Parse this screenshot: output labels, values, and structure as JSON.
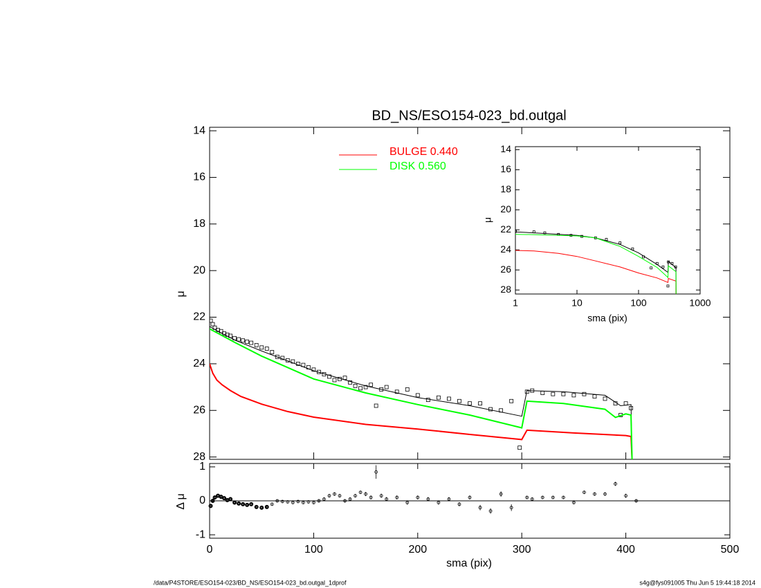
{
  "chart_data": [
    {
      "type": "line",
      "title": "BD_NS/ESO154-023_bd.outgal",
      "ylabel": "μ",
      "xlim": [
        0,
        500
      ],
      "ylim": [
        28.1,
        13.85
      ],
      "xticks": [
        0,
        100,
        200,
        300,
        400,
        500
      ],
      "yticks": [
        14,
        16,
        18,
        20,
        22,
        24,
        26,
        28
      ],
      "legend": "top",
      "series": [
        {
          "color": "#000000",
          "marker": "square",
          "x": [
            1,
            3,
            5,
            8,
            11,
            14,
            17,
            20,
            24,
            28,
            32,
            36,
            40,
            45,
            50,
            55,
            60,
            65,
            70,
            75,
            80,
            85,
            90,
            95,
            100,
            105,
            110,
            115,
            120,
            125,
            130,
            135,
            140,
            145,
            150,
            155,
            160,
            165,
            170,
            180,
            190,
            200,
            210,
            220,
            230,
            240,
            250,
            260,
            270,
            280,
            290,
            298,
            305,
            310,
            320,
            330,
            340,
            350,
            360,
            370,
            380,
            390,
            395,
            400,
            405
          ],
          "values": [
            22.15,
            22.3,
            22.45,
            22.55,
            22.6,
            22.7,
            22.75,
            22.8,
            22.9,
            22.95,
            23.0,
            23.05,
            23.1,
            23.2,
            23.3,
            23.35,
            23.5,
            23.7,
            23.75,
            23.85,
            23.9,
            24.0,
            24.05,
            24.15,
            24.25,
            24.35,
            24.45,
            24.55,
            24.7,
            24.65,
            24.6,
            24.8,
            24.95,
            25.05,
            25.0,
            24.9,
            25.8,
            25.1,
            25.0,
            25.2,
            25.1,
            25.35,
            25.55,
            25.45,
            25.5,
            25.6,
            25.7,
            25.7,
            25.95,
            26.0,
            25.6,
            27.6,
            25.2,
            25.15,
            25.25,
            25.3,
            25.3,
            25.35,
            25.3,
            25.4,
            25.5,
            25.7,
            26.2,
            25.7,
            25.9
          ]
        },
        {
          "color": "#000000",
          "x": [
            0,
            10,
            25,
            50,
            100,
            150,
            200,
            250,
            300,
            305,
            340,
            380,
            395,
            405,
            406
          ],
          "values": [
            22.4,
            22.65,
            23.0,
            23.45,
            24.3,
            24.95,
            25.45,
            25.8,
            26.25,
            25.15,
            25.2,
            25.35,
            25.8,
            25.75,
            28.1
          ]
        },
        {
          "name": "BULGE  0.440",
          "color": "#ff0000",
          "x": [
            0,
            3,
            7,
            12,
            20,
            30,
            50,
            75,
            100,
            150,
            200,
            250,
            300,
            305,
            350,
            400,
            405,
            406
          ],
          "values": [
            24.0,
            24.4,
            24.7,
            24.9,
            25.15,
            25.4,
            25.73,
            26.05,
            26.29,
            26.6,
            26.8,
            27.03,
            27.25,
            26.85,
            26.97,
            27.08,
            27.12,
            28.1
          ]
        },
        {
          "name": "DISK  0.560",
          "color": "#00ff00",
          "x": [
            0,
            25,
            50,
            100,
            150,
            200,
            250,
            300,
            305,
            340,
            380,
            390,
            400,
            405,
            406
          ],
          "values": [
            22.5,
            23.1,
            23.67,
            24.65,
            25.25,
            25.75,
            26.2,
            26.75,
            25.6,
            25.7,
            25.95,
            26.3,
            26.15,
            26.2,
            28.1
          ]
        }
      ]
    },
    {
      "type": "scatter",
      "xlabel": "sma (pix)",
      "ylabel": "Δ μ",
      "xlim": [
        0,
        500
      ],
      "ylim": [
        -1.1,
        1.1
      ],
      "xticks": [
        0,
        100,
        200,
        300,
        400,
        500
      ],
      "yticks": [
        -1,
        0,
        1
      ],
      "baseline": 0,
      "color": "#000000",
      "x": [
        1,
        3,
        5,
        8,
        11,
        14,
        17,
        20,
        24,
        28,
        32,
        36,
        40,
        45,
        50,
        55,
        60,
        65,
        70,
        75,
        80,
        85,
        90,
        95,
        100,
        105,
        110,
        115,
        120,
        125,
        130,
        135,
        140,
        145,
        150,
        155,
        160,
        165,
        170,
        180,
        190,
        200,
        210,
        220,
        230,
        240,
        250,
        260,
        270,
        280,
        290,
        305,
        310,
        320,
        330,
        340,
        350,
        360,
        370,
        380,
        390,
        400,
        410
      ],
      "values": [
        -0.15,
        0.0,
        0.1,
        0.15,
        0.12,
        0.08,
        0.02,
        0.05,
        -0.05,
        -0.08,
        -0.1,
        -0.12,
        -0.1,
        -0.18,
        -0.2,
        -0.18,
        -0.1,
        0.0,
        -0.02,
        -0.03,
        -0.05,
        -0.02,
        -0.05,
        -0.03,
        -0.05,
        0.0,
        0.05,
        0.15,
        0.2,
        0.15,
        0.0,
        0.05,
        0.15,
        0.25,
        0.2,
        0.1,
        0.85,
        0.15,
        0.05,
        0.1,
        -0.05,
        0.1,
        0.05,
        -0.05,
        0.05,
        -0.1,
        0.1,
        -0.2,
        -0.3,
        0.2,
        -0.2,
        0.1,
        0.05,
        0.1,
        0.1,
        0.1,
        -0.05,
        0.25,
        0.2,
        0.2,
        0.5,
        0.15,
        0.0
      ],
      "errors": [
        0.03,
        0.03,
        0.03,
        0.03,
        0.03,
        0.03,
        0.03,
        0.03,
        0.03,
        0.03,
        0.03,
        0.03,
        0.03,
        0.03,
        0.03,
        0.03,
        0.03,
        0.04,
        0.04,
        0.04,
        0.04,
        0.04,
        0.04,
        0.04,
        0.05,
        0.05,
        0.05,
        0.05,
        0.05,
        0.05,
        0.05,
        0.05,
        0.05,
        0.05,
        0.06,
        0.06,
        0.2,
        0.06,
        0.06,
        0.06,
        0.06,
        0.06,
        0.06,
        0.06,
        0.06,
        0.06,
        0.06,
        0.08,
        0.08,
        0.08,
        0.1,
        0.05,
        0.05,
        0.05,
        0.05,
        0.05,
        0.05,
        0.05,
        0.05,
        0.05,
        0.06,
        0.06,
        0.05
      ]
    },
    {
      "type": "line",
      "xlabel": "sma (pix)",
      "ylabel": "μ",
      "xlog": true,
      "xlim": [
        1,
        1000
      ],
      "ylim": [
        28.4,
        13.7
      ],
      "xticks": [
        1,
        10,
        100,
        1000
      ],
      "yticks": [
        14,
        16,
        18,
        20,
        22,
        24,
        26,
        28
      ],
      "series": [
        {
          "color": "#000000",
          "marker": "square",
          "x": [
            1,
            2,
            3,
            5,
            8,
            12,
            20,
            30,
            50,
            80,
            120,
            160,
            200,
            250,
            300,
            305,
            350,
            400
          ],
          "values": [
            22.15,
            22.2,
            22.3,
            22.45,
            22.55,
            22.65,
            22.8,
            22.95,
            23.3,
            23.9,
            24.7,
            25.8,
            25.35,
            25.7,
            27.6,
            25.2,
            25.35,
            25.7
          ]
        },
        {
          "color": "#000000",
          "x": [
            1,
            2,
            5,
            10,
            20,
            50,
            100,
            200,
            300,
            305,
            400,
            405,
            406
          ],
          "values": [
            22.2,
            22.3,
            22.45,
            22.55,
            22.8,
            23.45,
            24.3,
            25.45,
            26.25,
            25.15,
            25.75,
            25.75,
            28.4
          ]
        },
        {
          "color": "#ff0000",
          "x": [
            1,
            2,
            5,
            10,
            20,
            50,
            100,
            200,
            300,
            305,
            400,
            405,
            406
          ],
          "values": [
            24.05,
            24.1,
            24.35,
            24.65,
            25.1,
            25.7,
            26.3,
            26.8,
            27.25,
            26.85,
            27.1,
            27.12,
            28.4
          ]
        },
        {
          "color": "#00ff00",
          "x": [
            1,
            2,
            5,
            10,
            20,
            50,
            100,
            200,
            300,
            305,
            400,
            405,
            406
          ],
          "values": [
            22.45,
            22.48,
            22.55,
            22.6,
            22.8,
            23.65,
            24.65,
            25.75,
            26.75,
            25.6,
            26.15,
            26.2,
            28.4
          ]
        }
      ]
    }
  ],
  "footer": {
    "left": "/data/P4STORE/ESO154-023/BD_NS/ESO154-023_bd.outgal_1dprof",
    "right": "s4g@fys091005  Thu Jun  5 19:44:18 2014"
  }
}
